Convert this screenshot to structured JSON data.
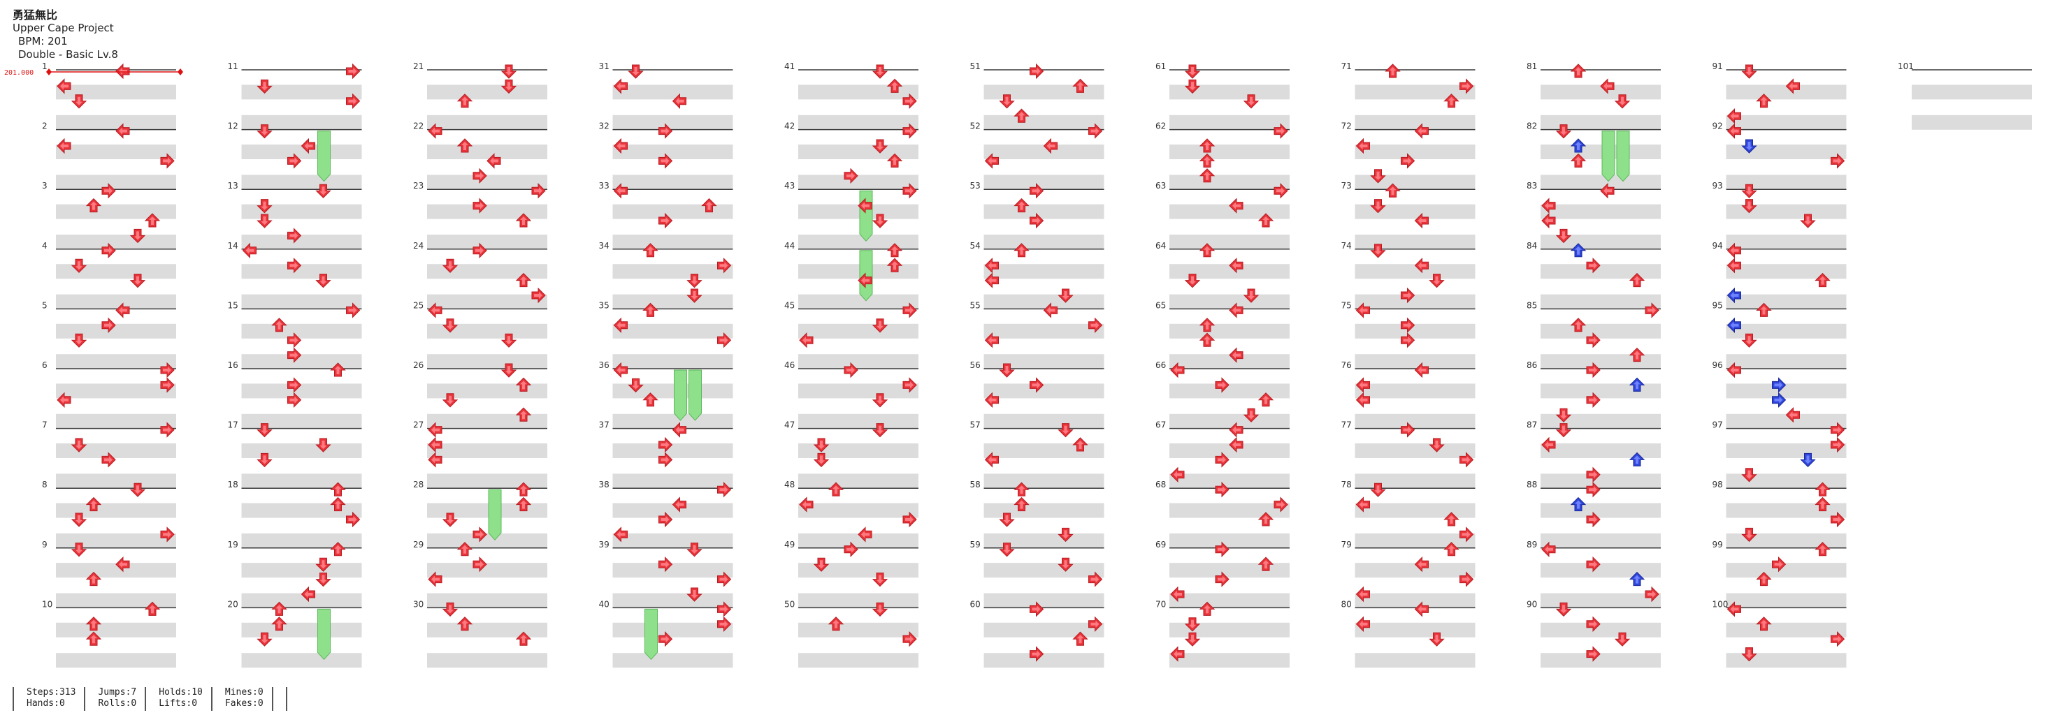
{
  "song": {
    "title": "勇猛無比",
    "artist": "Upper Cape Project",
    "bpm": "BPM: 201",
    "difficulty": "Double - Basic Lv.8"
  },
  "bpm_marker": "201.000",
  "measure_labels": [
    "1",
    "2",
    "3",
    "4",
    "5",
    "6",
    "7",
    "8",
    "9",
    "10",
    "11",
    "12",
    "13",
    "14",
    "15",
    "16",
    "17",
    "18",
    "19",
    "20",
    "21",
    "22",
    "23",
    "24",
    "25",
    "26",
    "27",
    "28",
    "29",
    "30",
    "31",
    "32",
    "33",
    "34",
    "35",
    "36",
    "37",
    "38",
    "39",
    "40",
    "41",
    "42",
    "43",
    "44",
    "45",
    "46",
    "47",
    "48",
    "49",
    "50",
    "51",
    "52",
    "53",
    "54",
    "55",
    "56",
    "57",
    "58",
    "59",
    "60",
    "61",
    "62",
    "63",
    "64",
    "65",
    "66",
    "67",
    "68",
    "69",
    "70",
    "71",
    "72",
    "73",
    "74",
    "75",
    "76",
    "77",
    "78",
    "79",
    "80",
    "81",
    "82",
    "83",
    "84",
    "85",
    "86",
    "87",
    "88",
    "89",
    "90",
    "91",
    "92",
    "93",
    "94",
    "95",
    "96",
    "97",
    "98",
    "99",
    "100",
    "101"
  ],
  "colors": {
    "step": "#e8333a",
    "step_alt": "#2e45d8",
    "hold": "#8ee08a",
    "lane": "#dcdcdc",
    "rule": "#3a3a3a",
    "marker": "#d11"
  },
  "stats": [
    [
      "Steps:313",
      "Hands:0"
    ],
    [
      "Jumps:7",
      "Rolls:0"
    ],
    [
      "Holds:10",
      "Lifts:0"
    ],
    [
      "Mines:0",
      "Fakes:0"
    ]
  ]
}
